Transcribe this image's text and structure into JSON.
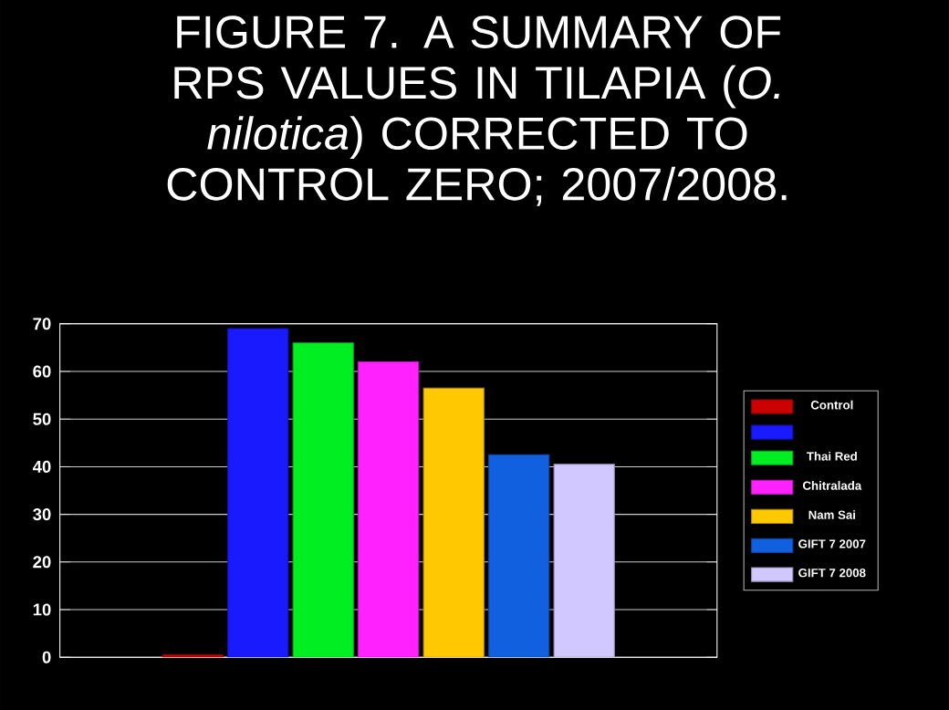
{
  "chart_data": {
    "type": "bar",
    "title": "FIGURE 7. A SUMMARY OF RPS VALUES IN TILAPIA (*O. nilotica*) CORRECTED TO CONTROL ZERO; 2007/2008.",
    "categories": [
      null
    ],
    "series": [
      {
        "name": "Control",
        "color": "#cc0000",
        "values": [
          0.5
        ]
      },
      {
        "color": "#1a1aff",
        "values": [
          69
        ]
      },
      {
        "name": "Thai Red",
        "color": "#00ee22",
        "values": [
          66
        ]
      },
      {
        "name": "Chitralada",
        "color": "#ff22ff",
        "values": [
          62
        ]
      },
      {
        "name": "Nam Sai",
        "color": "#ffc800",
        "values": [
          56.5
        ]
      },
      {
        "name": "GIFT 7 2007",
        "color": "#1060e0",
        "values": [
          42.5
        ]
      },
      {
        "name": "GIFT 7 2008",
        "color": "#d0c8ff",
        "values": [
          40.5
        ]
      }
    ],
    "ylim": [
      0,
      70
    ],
    "yticks": [
      0,
      10,
      20,
      30,
      40,
      50,
      60,
      70
    ],
    "grid": "y",
    "legend": "right",
    "tick_labels": "y"
  }
}
